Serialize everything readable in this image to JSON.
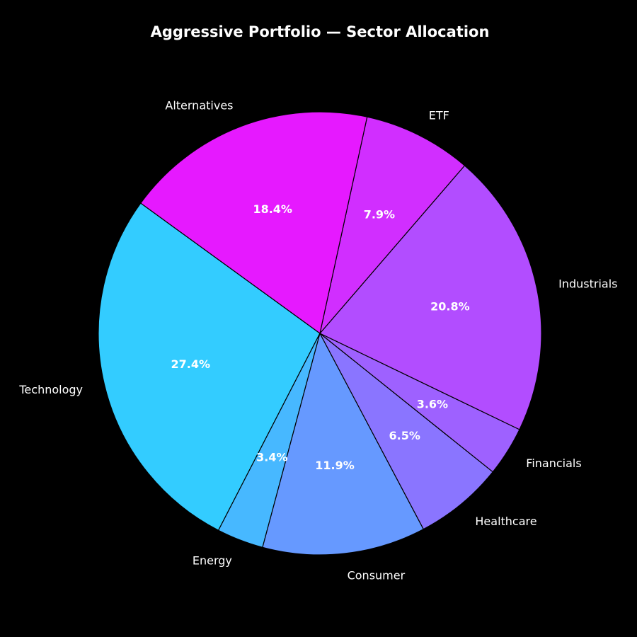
{
  "chart_data": {
    "type": "pie",
    "title": "Aggressive Portfolio — Sector Allocation",
    "start_angle_deg": 144,
    "direction": "counterclockwise",
    "slices": [
      {
        "label": "Technology",
        "value": 27.4,
        "pct_label": "27.4%",
        "color": "#33ccff"
      },
      {
        "label": "Energy",
        "value": 3.4,
        "pct_label": "3.4%",
        "color": "#47b8ff"
      },
      {
        "label": "Consumer",
        "value": 11.9,
        "pct_label": "11.9%",
        "color": "#6699ff"
      },
      {
        "label": "Healthcare",
        "value": 6.5,
        "pct_label": "6.5%",
        "color": "#8a75ff"
      },
      {
        "label": "Financials",
        "value": 3.6,
        "pct_label": "3.6%",
        "color": "#9e61ff"
      },
      {
        "label": "Industrials",
        "value": 20.8,
        "pct_label": "20.8%",
        "color": "#b24dff"
      },
      {
        "label": "ETF",
        "value": 7.9,
        "pct_label": "7.9%",
        "color": "#d12eff"
      },
      {
        "label": "Alternatives",
        "value": 18.4,
        "pct_label": "18.4%",
        "color": "#e619ff"
      }
    ]
  }
}
